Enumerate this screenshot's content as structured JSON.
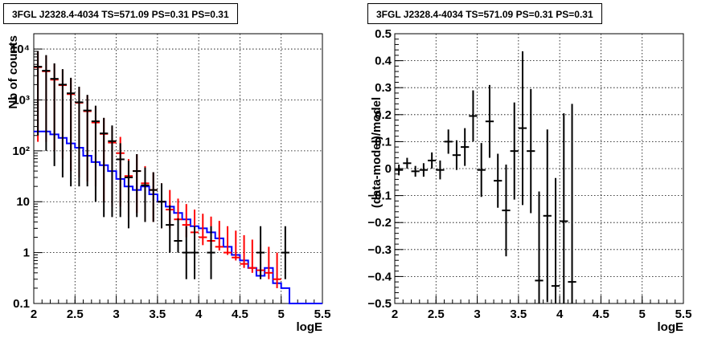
{
  "chart_data": [
    {
      "type": "line",
      "title": "3FGL J2328.4-4034 TS=571.09 PS=0.31 PS=0.31",
      "xlabel": "logE",
      "ylabel": "Nb of counts",
      "xlim": [
        2,
        5.5
      ],
      "ylim": [
        0.1,
        20000
      ],
      "yscale": "log",
      "grid": true,
      "x_ticks": [
        "2",
        "2.5",
        "3",
        "3.5",
        "4",
        "4.5",
        "5",
        "5.5"
      ],
      "y_ticks": [
        "0.1",
        "1",
        "10",
        "10²",
        "10³",
        "10⁴"
      ],
      "series": [
        {
          "kind": "data",
          "color": "#000000",
          "x": [
            2.05,
            2.15,
            2.25,
            2.35,
            2.45,
            2.55,
            2.65,
            2.75,
            2.85,
            2.95,
            3.05,
            3.15,
            3.25,
            3.35,
            3.45,
            3.55,
            3.65,
            3.75,
            3.85,
            3.95,
            4.05,
            4.15,
            4.25,
            4.35,
            4.45,
            4.55,
            4.65,
            4.75,
            4.85,
            4.95,
            5.05
          ],
          "y": [
            4500,
            3750,
            2600,
            2000,
            1350,
            900,
            620,
            380,
            220,
            155,
            68,
            30,
            40,
            21,
            17,
            10,
            3.5,
            1.7,
            1.0,
            1.0,
            0,
            1.0,
            0,
            0,
            0,
            0,
            0,
            1.0,
            0,
            0,
            1.0
          ],
          "err_low": [
            4300,
            3650,
            2550,
            1970,
            1330,
            880,
            600,
            370,
            215,
            150,
            63,
            27,
            35,
            17,
            13,
            7,
            2.5,
            0.7,
            0.7,
            0.7,
            0,
            0.7,
            0,
            0,
            0,
            0,
            0,
            0.7,
            0,
            0,
            0.7
          ],
          "err_high": [
            4700,
            3850,
            2650,
            2030,
            1370,
            920,
            640,
            390,
            225,
            160,
            73,
            34,
            46,
            26,
            21,
            13,
            5,
            3,
            2.3,
            2.3,
            0,
            2.3,
            0,
            0,
            0,
            0,
            0,
            2.3,
            0,
            0,
            2.3
          ]
        },
        {
          "kind": "model-points",
          "color": "#ff0000",
          "x": [
            2.05,
            2.15,
            2.25,
            2.35,
            2.45,
            2.55,
            2.65,
            2.75,
            2.85,
            2.95,
            3.05,
            3.15,
            3.25,
            3.35,
            3.45,
            3.55,
            3.65,
            3.75,
            3.85,
            3.95,
            4.05,
            4.15,
            4.25,
            4.35,
            4.45,
            4.55,
            4.65,
            4.75,
            4.85,
            4.95
          ],
          "y": [
            4400,
            3650,
            2500,
            1950,
            1300,
            880,
            600,
            360,
            215,
            145,
            90,
            32,
            40,
            23,
            17,
            10,
            7,
            4.5,
            3.5,
            2.5,
            2.0,
            1.7,
            1.3,
            1.0,
            0.8,
            0.6,
            0.5,
            0.45,
            0.4,
            0.3
          ],
          "err_low": [
            4250,
            3500,
            2400,
            1880,
            1260,
            850,
            575,
            340,
            205,
            137,
            82,
            27,
            34,
            19,
            13,
            7,
            4,
            2.2,
            1.5,
            0.9,
            0.6,
            0.4,
            0.2,
            0.1,
            0.1,
            0.1,
            0.1,
            0.1,
            0.1,
            0.1
          ],
          "err_high": [
            4550,
            3800,
            2600,
            2020,
            1340,
            910,
            625,
            380,
            225,
            153,
            98,
            37,
            46,
            27,
            21,
            13,
            10,
            7,
            5.5,
            4.5,
            3.8,
            3.4,
            2.9,
            2.3,
            1.9,
            1.6,
            1.3,
            1.0,
            0.9,
            0.7
          ]
        },
        {
          "kind": "model-histogram",
          "color": "#0000ff",
          "bin_edges": [
            2.0,
            2.1,
            2.2,
            2.3,
            2.4,
            2.5,
            2.6,
            2.7,
            2.8,
            2.9,
            3.0,
            3.1,
            3.2,
            3.3,
            3.4,
            3.5,
            3.6,
            3.7,
            3.8,
            3.9,
            4.0,
            4.1,
            4.2,
            4.3,
            4.4,
            4.5,
            4.6,
            4.7,
            4.8,
            4.9,
            5.0,
            5.1,
            5.2,
            5.3,
            5.4,
            5.5
          ],
          "y": [
            240,
            240,
            210,
            180,
            140,
            115,
            80,
            60,
            52,
            40,
            28,
            20,
            17,
            20,
            14,
            10,
            8,
            6,
            4.5,
            3.3,
            3.0,
            2.5,
            1.9,
            1.3,
            0.9,
            0.7,
            0.5,
            0.35,
            0.5,
            0.25,
            0.2,
            0.1,
            0.1,
            0.1,
            0.1
          ]
        }
      ]
    },
    {
      "type": "scatter",
      "title": "3FGL J2328.4-4034 TS=571.09 PS=0.31 PS=0.31",
      "xlabel": "logE",
      "ylabel": "(data-model)/model",
      "xlim": [
        2,
        5.5
      ],
      "ylim": [
        -0.5,
        0.5
      ],
      "grid": true,
      "x_ticks": [
        "2",
        "2.5",
        "3",
        "3.5",
        "4",
        "4.5",
        "5",
        "5.5"
      ],
      "y_ticks": [
        "−0.5",
        "−0.4",
        "−0.3",
        "−0.2",
        "−0.1",
        "0",
        "0.1",
        "0.2",
        "0.3",
        "0.4",
        "0.5"
      ],
      "x": [
        2.05,
        2.15,
        2.25,
        2.35,
        2.45,
        2.55,
        2.65,
        2.75,
        2.85,
        2.95,
        3.05,
        3.15,
        3.25,
        3.35,
        3.45,
        3.55,
        3.65,
        3.75,
        3.85,
        3.95,
        4.05,
        4.15
      ],
      "y": [
        -0.005,
        0.02,
        -0.01,
        -0.005,
        0.03,
        -0.005,
        0.1,
        0.05,
        0.08,
        0.195,
        -0.005,
        0.175,
        -0.045,
        -0.155,
        0.065,
        0.15,
        0.065,
        -0.415,
        -0.175,
        -0.435,
        -0.195,
        -0.42
      ],
      "err": [
        0.02,
        0.02,
        0.02,
        0.025,
        0.03,
        0.035,
        0.045,
        0.055,
        0.07,
        0.095,
        0.1,
        0.135,
        0.1,
        0.17,
        0.18,
        0.285,
        0.23,
        0.33,
        0.32,
        0.4,
        0.4,
        0.66
      ]
    }
  ]
}
